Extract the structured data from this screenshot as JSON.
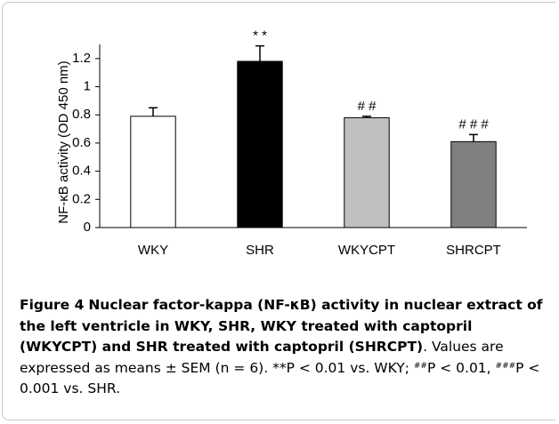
{
  "chart_data": {
    "type": "bar",
    "ylabel": "NF-κB activity (OD 450 nm)",
    "categories": [
      "WKY",
      "SHR",
      "WKYCPT",
      "SHRCPT"
    ],
    "values": [
      0.79,
      1.18,
      0.78,
      0.61
    ],
    "errors": [
      0.06,
      0.11,
      0.01,
      0.05
    ],
    "colors": [
      "#ffffff",
      "#000000",
      "#c0c0c0",
      "#808080"
    ],
    "annotations": [
      null,
      "* *",
      "# #",
      "# # #"
    ],
    "ylim": [
      0,
      1.3
    ],
    "yticks": [
      0,
      0.2,
      0.4,
      0.6,
      0.8,
      1,
      1.2
    ],
    "grid": false
  },
  "caption": {
    "label": "Figure 4",
    "title": "Nuclear factor-kappa (NF-κB) activity in nuclear extract of the left ventricle in WKY, SHR, WKY treated with captopril (WKYCPT) and SHR treated with captopril (SHRCPT)",
    "text_1": ". Values are expressed as means ± SEM (n = 6). **P < 0.01 vs. WKY; ",
    "sup_1": "##",
    "text_2": "P < 0.01, ",
    "sup_2": "###",
    "text_3": "P < 0.001 vs. SHR."
  }
}
